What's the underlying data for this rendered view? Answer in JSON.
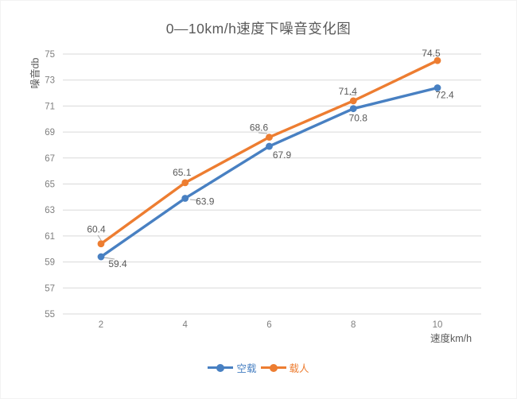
{
  "title": "0—10km/h速度下噪音变化图",
  "chart_data": {
    "type": "line",
    "title": "0—10km/h速度下噪音变化图",
    "xlabel": "速度km/h",
    "ylabel": "噪音db",
    "x": [
      2,
      4,
      6,
      8,
      10
    ],
    "xticks": [
      "2",
      "4",
      "6",
      "8",
      "10"
    ],
    "yticks": [
      55,
      57,
      59,
      61,
      63,
      65,
      67,
      69,
      71,
      73,
      75
    ],
    "ylim": [
      55,
      75
    ],
    "grid": true,
    "legend_position": "bottom",
    "series": [
      {
        "name": "空载",
        "color": "#4880C2",
        "marker": "circle",
        "values": [
          59.4,
          63.9,
          67.9,
          70.8,
          72.4
        ]
      },
      {
        "name": "载人",
        "color": "#ED7D31",
        "marker": "circle",
        "values": [
          60.4,
          65.1,
          68.6,
          71.4,
          74.5
        ]
      }
    ],
    "data_labels_visible": true
  },
  "style": {
    "grid_color": "#D9D9D9",
    "tick_label_color": "#7F7F7F",
    "data_label_color": "#595959",
    "leader_line_color": "#A6A6A6"
  }
}
